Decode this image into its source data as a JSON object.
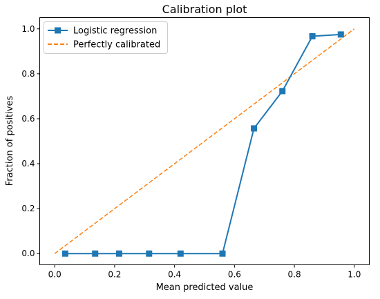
{
  "chart_data": {
    "type": "line",
    "title": "Calibration plot",
    "xlabel": "Mean predicted value",
    "ylabel": "Fraction of positives",
    "xlim": [
      -0.05,
      1.05
    ],
    "ylim": [
      -0.05,
      1.05
    ],
    "xticks": [
      0.0,
      0.2,
      0.4,
      0.6,
      0.8,
      1.0
    ],
    "xtick_labels": [
      "0.0",
      "0.2",
      "0.4",
      "0.6",
      "0.8",
      "1.0"
    ],
    "yticks": [
      0.0,
      0.2,
      0.4,
      0.6,
      0.8,
      1.0
    ],
    "ytick_labels": [
      "0.0",
      "0.2",
      "0.4",
      "0.6",
      "0.8",
      "1.0"
    ],
    "grid": false,
    "legend_position": "top-left",
    "series": [
      {
        "name": "Logistic regression",
        "style": "solid-with-square-markers",
        "color": "#1f77b4",
        "x": [
          0.035,
          0.135,
          0.215,
          0.315,
          0.42,
          0.56,
          0.665,
          0.76,
          0.86,
          0.955
        ],
        "y": [
          0.0,
          0.0,
          0.0,
          0.0,
          0.0,
          0.0,
          0.557,
          0.723,
          0.967,
          0.975
        ]
      },
      {
        "name": "Perfectly calibrated",
        "style": "dashed",
        "color": "#ff7f0e",
        "x": [
          0.0,
          1.0
        ],
        "y": [
          0.0,
          1.0
        ]
      }
    ]
  }
}
